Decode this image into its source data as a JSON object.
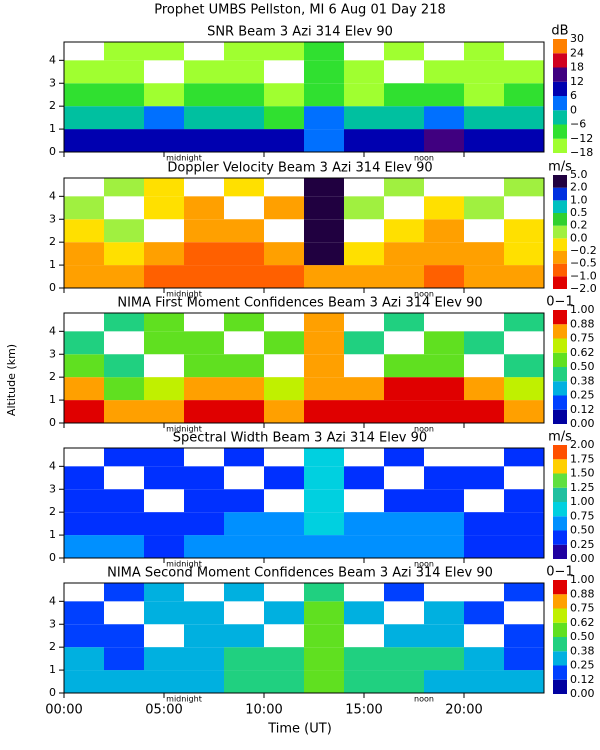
{
  "figure": {
    "title": "Prophet  UMBS Pellston, MI    6 Aug 01 Day 218",
    "xlabel": "Time (UT)",
    "ylabel": "Altitude (km)",
    "xlim": [
      0,
      24
    ],
    "xticks": [
      {
        "value": 0,
        "label": "00:00"
      },
      {
        "value": 5,
        "label": "05:00"
      },
      {
        "value": 10,
        "label": "10:00"
      },
      {
        "value": 15,
        "label": "15:00"
      },
      {
        "value": 20,
        "label": "20:00"
      }
    ],
    "local_markers": [
      {
        "value": 6,
        "label": "midnight"
      },
      {
        "value": 18,
        "label": "noon"
      }
    ]
  },
  "chart_data": [
    {
      "type": "heatmap",
      "title": "SNR Beam 3 Azi 314 Elev 90",
      "colorbar_label": "dB",
      "ylim": [
        0,
        4.8
      ],
      "yticks": [
        0,
        1,
        2,
        3,
        4
      ],
      "x_edges": [
        0,
        2,
        4,
        6,
        8,
        10,
        12,
        14,
        16,
        18,
        20,
        22,
        24
      ],
      "y_edges": [
        0,
        1,
        2,
        3,
        4,
        4.8
      ],
      "z": [
        [
          6,
          8,
          10,
          10,
          8,
          6,
          4,
          6,
          10,
          12,
          10,
          8
        ],
        [
          -4,
          -2,
          0,
          -4,
          -6,
          -8,
          0,
          -2,
          -2,
          0,
          -4,
          -6
        ],
        [
          -12,
          -10,
          -14,
          -10,
          -12,
          -14,
          -8,
          -14,
          -12,
          -10,
          -14,
          -12
        ],
        [
          -16,
          -14,
          null,
          -14,
          -14,
          null,
          -10,
          -14,
          null,
          -16,
          -14,
          -16
        ],
        [
          null,
          -16,
          -16,
          null,
          -16,
          -16,
          -10,
          null,
          -16,
          null,
          -16,
          null
        ]
      ],
      "colorbar": {
        "ticks": [
          {
            "value": -18,
            "label": "−18"
          },
          {
            "value": -12,
            "label": "−12"
          },
          {
            "value": -6,
            "label": "−6"
          },
          0,
          6,
          12,
          18,
          24,
          30
        ],
        "colors": [
          "#a0ff30",
          "#30e030",
          "#00c0a0",
          "#0070ff",
          "#0000b0",
          "#400080",
          "#d00020",
          "#ff8000"
        ]
      }
    },
    {
      "type": "heatmap",
      "title": "Doppler Velocity Beam 3 Azi 314 Elev 90",
      "colorbar_label": "m/s",
      "ylim": [
        0,
        4.8
      ],
      "yticks": [
        0,
        1,
        2,
        3,
        4
      ],
      "x_edges": [
        0,
        2,
        4,
        6,
        8,
        10,
        12,
        14,
        16,
        18,
        20,
        22,
        24
      ],
      "y_edges": [
        0,
        1,
        2,
        3,
        4,
        4.8
      ],
      "z": [
        [
          -0.4,
          -0.3,
          -0.6,
          -0.8,
          -0.7,
          -0.6,
          -0.5,
          -0.3,
          -0.4,
          -0.6,
          -0.5,
          -0.3
        ],
        [
          -0.3,
          -0.1,
          -0.5,
          -0.7,
          -0.6,
          -0.4,
          3,
          -0.2,
          -0.3,
          -0.5,
          -0.4,
          -0.2
        ],
        [
          -0.1,
          0.1,
          null,
          -0.5,
          -0.3,
          null,
          3,
          null,
          -0.1,
          -0.3,
          null,
          -0.1
        ],
        [
          0.1,
          null,
          -0.2,
          -0.4,
          null,
          -0.3,
          3,
          0.1,
          null,
          -0.2,
          0.1,
          null
        ],
        [
          null,
          0.1,
          -0.1,
          null,
          -0.2,
          null,
          3,
          null,
          0.1,
          null,
          null,
          0.1
        ]
      ],
      "colorbar": {
        "ticks": [
          {
            "value": -2,
            "label": "−2.0"
          },
          {
            "value": -1,
            "label": "−1.0"
          },
          {
            "value": -0.5,
            "label": "−0.5"
          },
          {
            "value": -0.2,
            "label": "−0.2"
          },
          {
            "value": 0,
            "label": "0.0"
          },
          {
            "value": 0.2,
            "label": "0.2"
          },
          {
            "value": 0.5,
            "label": "0.5"
          },
          {
            "value": 1,
            "label": "1.0"
          },
          {
            "value": 2,
            "label": "2.0"
          },
          {
            "value": 5,
            "label": "5.0"
          }
        ],
        "colors": [
          "#e00000",
          "#ff6000",
          "#ffa000",
          "#ffe000",
          "#a0f040",
          "#30d030",
          "#00c0c0",
          "#0030e0",
          "#200040"
        ]
      }
    },
    {
      "type": "heatmap",
      "title": "NIMA First Moment Confidences Beam 3 Azi 314 Elev 90",
      "colorbar_label": "0−1",
      "ylim": [
        0,
        4.8
      ],
      "yticks": [
        0,
        1,
        2,
        3,
        4
      ],
      "x_edges": [
        0,
        2,
        4,
        6,
        8,
        10,
        12,
        14,
        16,
        18,
        20,
        22,
        24
      ],
      "y_edges": [
        0,
        1,
        2,
        3,
        4,
        4.8
      ],
      "z": [
        [
          0.9,
          0.8,
          0.85,
          0.9,
          0.9,
          0.85,
          0.9,
          0.95,
          0.95,
          0.95,
          0.9,
          0.85
        ],
        [
          0.8,
          0.6,
          0.7,
          0.8,
          0.75,
          0.7,
          0.85,
          0.8,
          0.9,
          0.9,
          0.8,
          0.7
        ],
        [
          0.5,
          0.45,
          null,
          0.6,
          0.55,
          null,
          0.8,
          null,
          0.5,
          0.55,
          null,
          0.45
        ],
        [
          0.45,
          null,
          0.5,
          0.55,
          null,
          0.5,
          0.8,
          0.45,
          null,
          0.5,
          0.45,
          null
        ],
        [
          null,
          0.45,
          0.5,
          null,
          0.5,
          null,
          0.8,
          null,
          0.45,
          null,
          null,
          0.45
        ]
      ],
      "colorbar": {
        "ticks": [
          {
            "value": 0,
            "label": "0.00"
          },
          0.12,
          0.25,
          0.38,
          {
            "value": 0.5,
            "label": "0.50"
          },
          0.62,
          0.75,
          0.88,
          {
            "value": 1,
            "label": "1.00"
          }
        ],
        "colors": [
          "#0000a0",
          "#0040ff",
          "#00b0e0",
          "#20d080",
          "#60e020",
          "#c0f000",
          "#ffa000",
          "#e00000"
        ]
      }
    },
    {
      "type": "heatmap",
      "title": "Spectral Width Beam 3 Azi 314 Elev 90",
      "colorbar_label": "m/s",
      "ylim": [
        0,
        4.8
      ],
      "yticks": [
        0,
        1,
        2,
        3,
        4
      ],
      "x_edges": [
        0,
        2,
        4,
        6,
        8,
        10,
        12,
        14,
        16,
        18,
        20,
        22,
        24
      ],
      "y_edges": [
        0,
        1,
        2,
        3,
        4,
        4.8
      ],
      "z": [
        [
          0.6,
          0.5,
          0.4,
          0.5,
          0.55,
          0.6,
          0.65,
          0.6,
          0.55,
          0.5,
          0.45,
          0.4
        ],
        [
          0.4,
          0.3,
          0.35,
          0.45,
          0.5,
          0.55,
          0.9,
          0.6,
          0.55,
          0.5,
          0.4,
          0.3
        ],
        [
          0.3,
          0.3,
          null,
          0.4,
          0.45,
          null,
          0.9,
          null,
          0.45,
          0.4,
          null,
          0.3
        ],
        [
          0.3,
          null,
          0.35,
          0.4,
          null,
          0.4,
          0.9,
          0.35,
          null,
          0.35,
          0.3,
          null
        ],
        [
          null,
          0.3,
          0.3,
          null,
          0.35,
          null,
          0.8,
          null,
          0.3,
          null,
          null,
          0.3
        ]
      ],
      "colorbar": {
        "ticks": [
          {
            "value": 0,
            "label": "0.00"
          },
          0.25,
          {
            "value": 0.5,
            "label": "0.50"
          },
          0.75,
          {
            "value": 1,
            "label": "1.00"
          },
          1.25,
          {
            "value": 1.5,
            "label": "1.50"
          },
          1.75,
          {
            "value": 2,
            "label": "2.00"
          }
        ],
        "colors": [
          "#2000a0",
          "#0030ff",
          "#0090ff",
          "#00d0e0",
          "#20c0a0",
          "#60e040",
          "#ffd000",
          "#ff5000"
        ]
      }
    },
    {
      "type": "heatmap",
      "title": "NIMA Second Moment Confidences Beam 3 Azi 314 Elev 90",
      "colorbar_label": "0−1",
      "ylim": [
        0,
        4.8
      ],
      "yticks": [
        0,
        1,
        2,
        3,
        4
      ],
      "x_edges": [
        0,
        2,
        4,
        6,
        8,
        10,
        12,
        14,
        16,
        18,
        20,
        22,
        24
      ],
      "y_edges": [
        0,
        1,
        2,
        3,
        4,
        4.8
      ],
      "z": [
        [
          0.3,
          0.25,
          0.3,
          0.35,
          0.4,
          0.45,
          0.5,
          0.45,
          0.4,
          0.35,
          0.3,
          0.25
        ],
        [
          0.25,
          0.2,
          0.3,
          0.35,
          0.4,
          0.4,
          0.5,
          0.45,
          0.45,
          0.4,
          0.3,
          0.2
        ],
        [
          0.2,
          0.2,
          null,
          0.3,
          0.3,
          null,
          0.5,
          null,
          0.3,
          0.3,
          null,
          0.2
        ],
        [
          0.2,
          null,
          0.25,
          0.3,
          null,
          0.3,
          0.5,
          0.25,
          null,
          0.25,
          0.2,
          null
        ],
        [
          null,
          0.2,
          0.25,
          null,
          0.25,
          null,
          0.45,
          null,
          0.2,
          null,
          null,
          0.2
        ]
      ],
      "colorbar": {
        "ticks": [
          {
            "value": 0,
            "label": "0.00"
          },
          0.12,
          0.25,
          0.38,
          {
            "value": 0.5,
            "label": "0.50"
          },
          0.62,
          0.75,
          0.88,
          {
            "value": 1,
            "label": "1.00"
          }
        ],
        "colors": [
          "#0000a0",
          "#0040ff",
          "#00b0e0",
          "#20d080",
          "#60e020",
          "#c0f000",
          "#ffa000",
          "#e00000"
        ]
      }
    }
  ]
}
